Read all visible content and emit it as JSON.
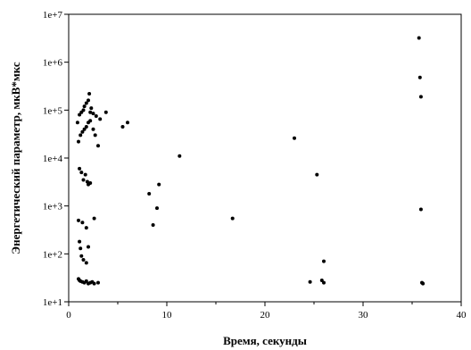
{
  "chart_data": {
    "type": "scatter",
    "title": "",
    "xlabel": "Время, секунды",
    "ylabel": "Энергетический параметр, мкВ*мкс",
    "xlim": [
      0,
      40
    ],
    "ylim": [
      10,
      10000000
    ],
    "yscale": "log",
    "grid": false,
    "legend": "none",
    "x_ticks": [
      "0",
      "10",
      "20",
      "30",
      "40"
    ],
    "y_ticks": [
      "1e+1",
      "1e+2",
      "1e+3",
      "1e+4",
      "1e+5",
      "1e+6",
      "1e+7"
    ],
    "marker_color": "#000000",
    "series": [
      {
        "x": [
          0.9,
          1.1,
          1.3,
          1.5,
          1.6,
          1.8,
          2.0,
          2.1,
          2.2,
          2.3,
          2.5,
          2.8,
          3.2,
          3.8,
          1.0,
          1.2,
          1.4,
          1.6,
          1.8,
          2.0,
          2.2,
          2.5,
          2.7,
          3.0,
          1.1,
          1.3,
          1.5,
          1.7,
          1.9,
          2.0,
          2.2,
          1.0,
          1.4,
          1.8,
          2.6,
          1.1,
          1.2,
          1.3,
          1.5,
          1.8,
          2.0,
          1.0,
          1.1,
          1.2,
          1.4,
          1.6,
          1.8,
          2.0,
          2.2,
          2.4,
          2.6,
          3.0,
          5.5,
          6.0,
          8.2,
          8.6,
          9.0,
          9.2,
          11.3,
          16.7,
          23.0,
          24.6,
          25.3,
          25.8,
          26.0,
          26.0,
          35.7,
          35.8,
          35.9,
          35.9,
          36.0,
          36.1
        ],
        "y": [
          55000,
          80000,
          90000,
          100000,
          120000,
          140000,
          160000,
          220000,
          90000,
          110000,
          85000,
          75000,
          65000,
          90000,
          22000,
          30000,
          35000,
          40000,
          45000,
          55000,
          60000,
          40000,
          30000,
          18000,
          6000,
          5000,
          3500,
          4500,
          3200,
          2800,
          3000,
          500,
          450,
          350,
          550,
          180,
          130,
          90,
          75,
          65,
          140,
          30,
          28,
          27,
          26,
          25,
          27,
          24,
          25,
          26,
          24,
          25,
          45000,
          55000,
          1800,
          400,
          900,
          2800,
          11000,
          550,
          26000,
          26,
          4500,
          28,
          25,
          70,
          3200000,
          480000,
          190000,
          850,
          25,
          24
        ]
      }
    ]
  }
}
